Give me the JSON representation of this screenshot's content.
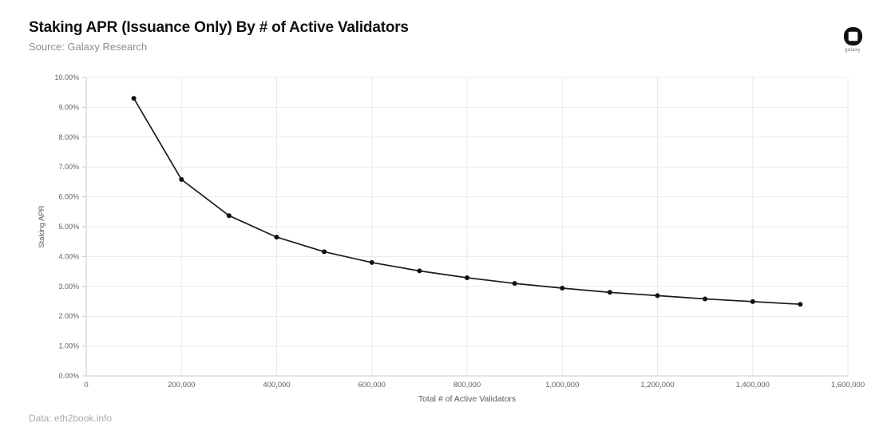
{
  "header": {
    "title": "Staking APR (Issuance Only) By # of Active Validators",
    "subtitle": "Source: Galaxy Research",
    "logo_text": "galaxy"
  },
  "footer": {
    "data_source": "Data: eth2book.info"
  },
  "colors": {
    "line": "#1c1c1c",
    "marker": "#111111",
    "grid": "#e9e9e9",
    "axis": "#c9c9c9",
    "tick_label": "#606060",
    "axis_title": "#595959"
  },
  "chart_data": {
    "type": "line",
    "title": "Staking APR (Issuance Only) By # of Active Validators",
    "xlabel": "Total # of Active Validators",
    "ylabel": "Staking APR",
    "x": [
      100000,
      200000,
      300000,
      400000,
      500000,
      600000,
      700000,
      800000,
      900000,
      1000000,
      1100000,
      1200000,
      1300000,
      1400000,
      1500000
    ],
    "y": [
      9.3,
      6.58,
      5.37,
      4.65,
      4.16,
      3.8,
      3.52,
      3.29,
      3.1,
      2.94,
      2.8,
      2.69,
      2.58,
      2.49,
      2.4
    ],
    "xlim": [
      0,
      1600000
    ],
    "ylim": [
      0,
      10
    ],
    "x_ticks": [
      0,
      200000,
      400000,
      600000,
      800000,
      1000000,
      1200000,
      1400000,
      1600000
    ],
    "x_tick_labels": [
      "0",
      "200,000",
      "400,000",
      "600,000",
      "800,000",
      "1,000,000",
      "1,200,000",
      "1,400,000",
      "1,600,000"
    ],
    "y_ticks": [
      0,
      1,
      2,
      3,
      4,
      5,
      6,
      7,
      8,
      9,
      10
    ],
    "y_tick_labels": [
      "0.00%",
      "1.00%",
      "2.00%",
      "3.00%",
      "4.00%",
      "5.00%",
      "6.00%",
      "7.00%",
      "8.00%",
      "9.00%",
      "10.00%"
    ],
    "grid": true,
    "legend": false,
    "markers": true
  }
}
